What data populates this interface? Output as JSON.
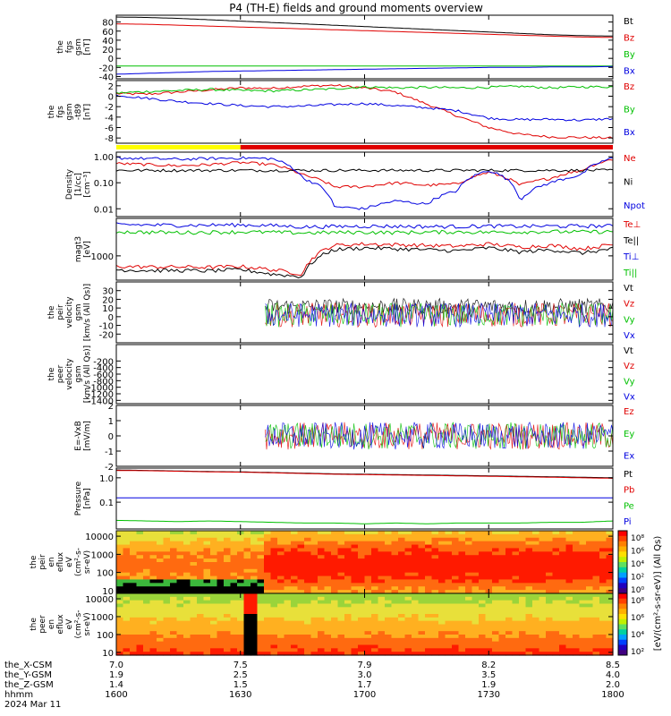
{
  "title": "P4 (TH-E) fields and ground moments overview",
  "colors": {
    "black": "#000000",
    "red": "#e00000",
    "green": "#00c000",
    "blue": "#0000e0",
    "yellow": "#ffff00"
  },
  "chart_data": [
    {
      "type": "line",
      "ylabel": [
        "the",
        "fgs",
        "gsm",
        "[nT]"
      ],
      "ylim": [
        -45,
        95
      ],
      "yticks": [
        -40,
        -20,
        0,
        20,
        40,
        60,
        80
      ],
      "series": [
        {
          "name": "Bt",
          "color": "black",
          "values": [
            91,
            90,
            88,
            85,
            82,
            79,
            76,
            73,
            70,
            67,
            64,
            61,
            58,
            55,
            52,
            50,
            49
          ]
        },
        {
          "name": "Bz",
          "color": "red",
          "values": [
            76,
            75,
            73,
            71,
            69,
            67,
            65,
            63,
            61,
            59,
            57,
            55,
            53,
            51,
            49,
            47,
            46
          ]
        },
        {
          "name": "By",
          "color": "green",
          "values": [
            -17,
            -17,
            -17,
            -17,
            -17,
            -17,
            -17,
            -17,
            -17,
            -17,
            -17,
            -17,
            -17,
            -17,
            -17,
            -17,
            -17
          ]
        },
        {
          "name": "Bx",
          "color": "blue",
          "values": [
            -35,
            -33,
            -31,
            -29,
            -28,
            -27,
            -26,
            -25,
            -24,
            -23,
            -22,
            -21,
            -20,
            -20,
            -19,
            -19,
            -18
          ]
        }
      ]
    },
    {
      "type": "line",
      "ylabel": [
        "the",
        "fgs",
        "gsm",
        "-t89",
        "[nT]"
      ],
      "ylim": [
        -9,
        3
      ],
      "yticks": [
        -8,
        -6,
        -4,
        -2,
        0,
        2
      ],
      "series": [
        {
          "name": "Bz",
          "color": "red",
          "values": [
            0.5,
            0.4,
            0.8,
            1.2,
            1.6,
            1.5,
            1.9,
            2.1,
            1.6,
            0.8,
            -1.5,
            -3.8,
            -6.0,
            -7.3,
            -7.8,
            -7.9,
            -8.0
          ]
        },
        {
          "name": "By",
          "color": "green",
          "values": [
            0.6,
            0.9,
            1.1,
            1.3,
            1.1,
            1.0,
            1.2,
            1.4,
            1.8,
            1.6,
            1.7,
            1.6,
            1.7,
            1.9,
            1.6,
            1.8,
            1.8
          ]
        },
        {
          "name": "Bx",
          "color": "blue",
          "values": [
            0.2,
            -0.4,
            -1.0,
            -1.4,
            -1.8,
            -2.0,
            -1.9,
            -1.6,
            -1.4,
            -1.8,
            -2.2,
            -2.8,
            -4.2,
            -4.5,
            -4.4,
            -4.6,
            -4.3
          ]
        }
      ]
    },
    {
      "type": "line",
      "ylabel": [
        "Density",
        "[1/cc]",
        "[cm^-3]"
      ],
      "yscale": "log",
      "ylim": [
        0.005,
        1.5
      ],
      "yticks": [
        0.01,
        0.1,
        1.0
      ],
      "yticklabels": [
        "0.01",
        "0.10",
        "1.00"
      ],
      "series": [
        {
          "name": "Ne",
          "color": "red",
          "values": [
            0.55,
            0.5,
            0.45,
            0.5,
            0.6,
            0.5,
            0.2,
            0.07,
            0.07,
            0.1,
            0.08,
            0.09,
            0.25,
            0.08,
            0.15,
            0.3,
            0.8
          ]
        },
        {
          "name": "Ni",
          "color": "black",
          "values": [
            0.3,
            0.3,
            0.3,
            0.3,
            0.3,
            0.3,
            0.3,
            0.3,
            0.3,
            0.3,
            0.3,
            0.3,
            0.3,
            0.3,
            0.3,
            0.3,
            0.3
          ]
        },
        {
          "name": "Npot",
          "color": "blue",
          "values": [
            0.9,
            0.85,
            0.8,
            0.85,
            0.9,
            0.85,
            0.15,
            0.012,
            0.01,
            0.02,
            0.015,
            0.05,
            0.3,
            0.02,
            0.1,
            0.2,
            0.9
          ]
        }
      ]
    },
    {
      "type": "line",
      "ylabel": [
        "magt3",
        "[eV]"
      ],
      "yscale": "log",
      "ylim": [
        200,
        12000
      ],
      "yticks": [
        1000
      ],
      "yticklabels": [
        "1000"
      ],
      "series": [
        {
          "name": "Te⊥",
          "color": "red",
          "values": [
            500,
            480,
            480,
            470,
            500,
            400,
            300,
            2000,
            2200,
            2100,
            2000,
            1900,
            2200,
            1800,
            2000,
            1600,
            2100
          ]
        },
        {
          "name": "Te||",
          "color": "black",
          "values": [
            400,
            380,
            380,
            370,
            400,
            300,
            250,
            1500,
            1700,
            1600,
            1500,
            1400,
            1700,
            1300,
            1500,
            1200,
            1600
          ]
        },
        {
          "name": "Ti⊥",
          "color": "blue",
          "values": [
            8000,
            7800,
            7600,
            7700,
            7800,
            7500,
            6800,
            7000,
            7200,
            7100,
            7000,
            7000,
            7200,
            7100,
            7200,
            7200,
            7300
          ]
        },
        {
          "name": "Ti||",
          "color": "green",
          "values": [
            5000,
            4800,
            4700,
            4800,
            4900,
            4800,
            4600,
            4700,
            4800,
            4700,
            4800,
            4900,
            4800,
            4900,
            5000,
            4900,
            5000
          ]
        }
      ]
    },
    {
      "type": "line",
      "ylabel": [
        "the",
        "peir",
        "velocity",
        "gsm",
        "[km/s (All Qs)]"
      ],
      "ylim": [
        -30,
        40
      ],
      "yticks": [
        -20,
        -10,
        0,
        10,
        20,
        30
      ],
      "series": [
        {
          "name": "Vt",
          "color": "black",
          "values": []
        },
        {
          "name": "Vz",
          "color": "red",
          "values": []
        },
        {
          "name": "Vy",
          "color": "green",
          "values": []
        },
        {
          "name": "Vx",
          "color": "blue",
          "values": []
        }
      ]
    },
    {
      "type": "line",
      "ylabel": [
        "the",
        "peer",
        "velocity",
        "gsm",
        "[km/s (All Qs)]"
      ],
      "ylim": [
        -1500,
        300
      ],
      "yticks": [
        -1400,
        -1200,
        -1000,
        -800,
        -600,
        -400,
        -200
      ],
      "series": [
        {
          "name": "Vt",
          "color": "black",
          "values": []
        },
        {
          "name": "Vz",
          "color": "red",
          "values": []
        },
        {
          "name": "Vy",
          "color": "green",
          "values": []
        },
        {
          "name": "Vx",
          "color": "blue",
          "values": []
        }
      ]
    },
    {
      "type": "line",
      "ylabel": [
        "E=-VxB",
        "[mV/m]"
      ],
      "ylim": [
        -2,
        2
      ],
      "yticks": [
        -2,
        -1,
        0,
        1,
        2
      ],
      "series": [
        {
          "name": "Ez",
          "color": "red",
          "values": []
        },
        {
          "name": "Ey",
          "color": "green",
          "values": []
        },
        {
          "name": "Ex",
          "color": "blue",
          "values": []
        }
      ]
    },
    {
      "type": "line",
      "ylabel": [
        "Pressure",
        "[nPa]"
      ],
      "yscale": "log",
      "ylim": [
        0.008,
        2.5
      ],
      "yticks": [
        0.1,
        1.0
      ],
      "yticklabels": [
        "0.1",
        "1.0"
      ],
      "series": [
        {
          "name": "Pt",
          "color": "black",
          "values": [
            2.1,
            2.0,
            1.9,
            1.8,
            1.75,
            1.65,
            1.55,
            1.45,
            1.4,
            1.35,
            1.3,
            1.25,
            1.2,
            1.15,
            1.1,
            1.05,
            1.0
          ]
        },
        {
          "name": "Pb",
          "color": "red",
          "values": [
            2.0,
            1.95,
            1.85,
            1.75,
            1.7,
            1.6,
            1.5,
            1.4,
            1.35,
            1.3,
            1.25,
            1.2,
            1.15,
            1.1,
            1.05,
            1.0,
            0.95
          ]
        },
        {
          "name": "Pe",
          "color": "green",
          "values": [
            0.018,
            0.017,
            0.016,
            0.017,
            0.016,
            0.015,
            0.014,
            0.014,
            0.013,
            0.014,
            0.013,
            0.014,
            0.014,
            0.014,
            0.015,
            0.015,
            0.017
          ]
        },
        {
          "name": "Pi",
          "color": "blue",
          "values": [
            0.15,
            0.15,
            0.15,
            0.15,
            0.15,
            0.15,
            0.15,
            0.15,
            0.15,
            0.15,
            0.15,
            0.15,
            0.15,
            0.15,
            0.15,
            0.15,
            0.15
          ]
        }
      ]
    },
    {
      "type": "heatmap",
      "ylabel": [
        "the",
        "peir",
        "en",
        "eflux",
        "eV",
        "(cm^2-s-",
        "sr-eV)"
      ],
      "yscale": "log",
      "ylim": [
        7,
        20000
      ],
      "yticks": [
        10,
        100,
        1000,
        10000
      ],
      "yticklabels": [
        "10",
        "100",
        "1000",
        "10000"
      ]
    },
    {
      "type": "heatmap",
      "ylabel": [
        "the",
        "peer",
        "en",
        "eflux",
        "eV",
        "(cm^2-s-",
        "sr-eV)"
      ],
      "yscale": "log",
      "ylim": [
        7,
        20000
      ],
      "yticks": [
        10,
        100,
        1000,
        10000
      ],
      "yticklabels": [
        "10",
        "100",
        "1000",
        "10000"
      ]
    }
  ],
  "colorbars": [
    {
      "ticks": [
        "10^8",
        "10^6",
        "10^4",
        "10^2",
        "10^0"
      ]
    },
    {
      "ticks": [
        "10^8",
        "10^6",
        "10^4",
        "10^2"
      ]
    }
  ],
  "colorbar_label": "[eV/(cm^2-s-sr-eV)] (All Qs)",
  "orbit_bar": {
    "yellow_until": "1630",
    "red_from": "1630"
  },
  "xaxis": {
    "ticks": [
      "1600",
      "1630",
      "1700",
      "1730",
      "1800"
    ],
    "rows": [
      {
        "label": "the_X-CSM",
        "values": [
          "7.0",
          "7.5",
          "7.9",
          "8.2",
          "8.5"
        ]
      },
      {
        "label": "the_Y-GSM",
        "values": [
          "1.9",
          "2.5",
          "3.0",
          "3.5",
          "4.0"
        ]
      },
      {
        "label": "the_Z-GSM",
        "values": [
          "1.4",
          "1.5",
          "1.7",
          "1.9",
          "2.0"
        ]
      },
      {
        "label": "hhmm",
        "values": [
          "1600",
          "1630",
          "1700",
          "1730",
          "1800"
        ]
      }
    ],
    "date": "2024 Mar 11"
  }
}
